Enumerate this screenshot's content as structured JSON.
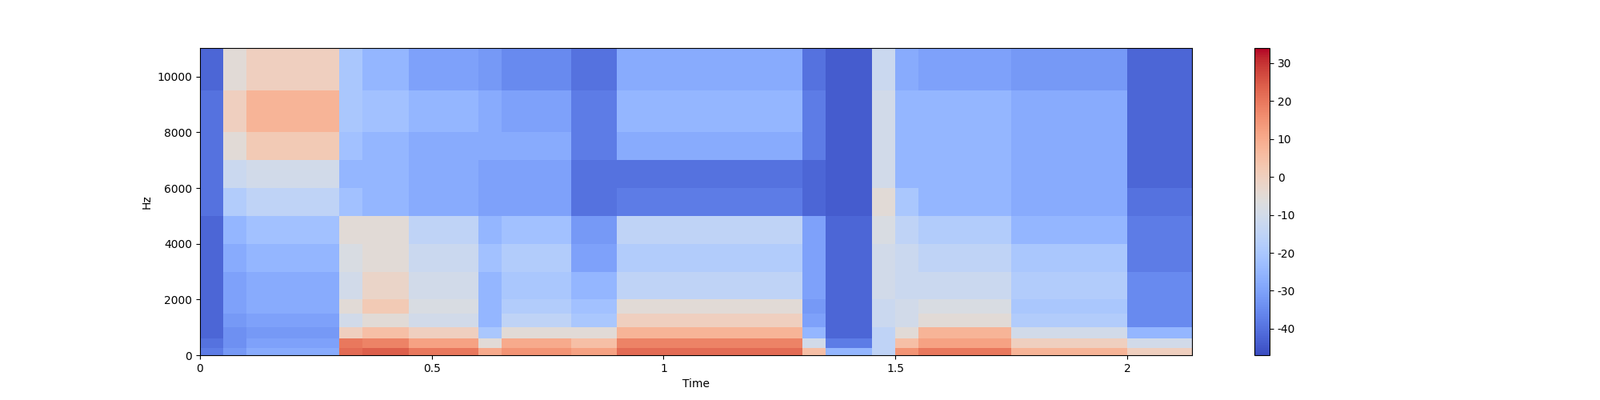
{
  "chart_data": {
    "type": "heatmap",
    "x_label": "Time",
    "y_label": "Hz",
    "xlim": [
      0,
      2.14
    ],
    "ylim": [
      0,
      11025
    ],
    "xticks": [
      0,
      0.5,
      1,
      1.5,
      2
    ],
    "yticks": [
      0,
      2000,
      4000,
      6000,
      8000,
      10000
    ],
    "x_edges": [
      0,
      0.05,
      0.1,
      0.15,
      0.2,
      0.25,
      0.3,
      0.35,
      0.4,
      0.45,
      0.5,
      0.55,
      0.6,
      0.65,
      0.7,
      0.75,
      0.8,
      0.85,
      0.9,
      0.95,
      1,
      1.05,
      1.1,
      1.15,
      1.2,
      1.25,
      1.3,
      1.35,
      1.4,
      1.45,
      1.5,
      1.55,
      1.6,
      1.65,
      1.7,
      1.75,
      1.8,
      1.85,
      1.9,
      1.95,
      2,
      2.05,
      2.1,
      2.14
    ],
    "y_edges": [
      0,
      250,
      600,
      1000,
      1500,
      2000,
      3000,
      4000,
      5000,
      6000,
      7000,
      8000,
      9500,
      11025
    ],
    "cells": [
      [
        -38,
        -32,
        -28,
        -28,
        -28,
        -28,
        22,
        24,
        24,
        20,
        20,
        20,
        10,
        15,
        15,
        15,
        12,
        12,
        22,
        22,
        22,
        22,
        22,
        22,
        22,
        22,
        5,
        -25,
        -25,
        -15,
        15,
        20,
        20,
        20,
        20,
        8,
        8,
        8,
        8,
        8,
        0,
        0,
        0
      ],
      [
        -40,
        -34,
        -30,
        -30,
        -30,
        -30,
        20,
        18,
        18,
        12,
        12,
        12,
        -5,
        10,
        10,
        10,
        5,
        5,
        18,
        18,
        18,
        18,
        18,
        18,
        18,
        18,
        -10,
        -38,
        -38,
        -15,
        5,
        12,
        12,
        12,
        12,
        0,
        0,
        0,
        0,
        0,
        -10,
        -10,
        -10
      ],
      [
        -42,
        -34,
        -32,
        -32,
        -32,
        -32,
        0,
        5,
        5,
        0,
        0,
        0,
        -20,
        -5,
        -5,
        -5,
        -5,
        -5,
        8,
        8,
        8,
        8,
        8,
        8,
        8,
        8,
        -25,
        -42,
        -42,
        -15,
        -5,
        8,
        8,
        8,
        8,
        -10,
        -10,
        -10,
        -10,
        -10,
        -25,
        -25,
        -25
      ],
      [
        -42,
        -32,
        -30,
        -30,
        -30,
        -30,
        -10,
        -5,
        -5,
        -10,
        -10,
        -10,
        -25,
        -15,
        -15,
        -15,
        -20,
        -20,
        0,
        0,
        0,
        0,
        0,
        0,
        0,
        0,
        -30,
        -42,
        -42,
        -12,
        -10,
        -5,
        -5,
        -5,
        -5,
        -18,
        -18,
        -18,
        -18,
        -18,
        -35,
        -35,
        -35
      ],
      [
        -42,
        -30,
        -28,
        -28,
        -28,
        -28,
        -5,
        2,
        2,
        -8,
        -8,
        -8,
        -25,
        -18,
        -18,
        -18,
        -22,
        -22,
        -5,
        -5,
        -5,
        -5,
        -5,
        -5,
        -5,
        -5,
        -32,
        -42,
        -42,
        -12,
        -10,
        -8,
        -8,
        -8,
        -8,
        -20,
        -20,
        -20,
        -20,
        -20,
        -35,
        -35,
        -35
      ],
      [
        -42,
        -30,
        -28,
        -28,
        -28,
        -28,
        -10,
        -2,
        -2,
        -10,
        -10,
        -10,
        -25,
        -20,
        -20,
        -20,
        -25,
        -25,
        -15,
        -15,
        -15,
        -15,
        -15,
        -15,
        -15,
        -15,
        -30,
        -42,
        -42,
        -10,
        -12,
        -12,
        -12,
        -12,
        -12,
        -18,
        -18,
        -18,
        -18,
        -18,
        -35,
        -35,
        -35
      ],
      [
        -42,
        -28,
        -25,
        -25,
        -25,
        -25,
        -8,
        -5,
        -5,
        -12,
        -12,
        -12,
        -22,
        -18,
        -18,
        -18,
        -30,
        -30,
        -18,
        -18,
        -18,
        -18,
        -18,
        -18,
        -18,
        -18,
        -30,
        -42,
        -42,
        -10,
        -12,
        -15,
        -15,
        -15,
        -15,
        -20,
        -20,
        -20,
        -20,
        -20,
        -38,
        -38,
        -38
      ],
      [
        -42,
        -25,
        -22,
        -22,
        -22,
        -22,
        -5,
        -5,
        -5,
        -15,
        -15,
        -15,
        -25,
        -22,
        -22,
        -22,
        -32,
        -32,
        -15,
        -15,
        -15,
        -15,
        -15,
        -15,
        -15,
        -15,
        -30,
        -42,
        -42,
        -8,
        -15,
        -18,
        -18,
        -18,
        -18,
        -25,
        -25,
        -25,
        -25,
        -25,
        -38,
        -38,
        -38
      ],
      [
        -40,
        -18,
        -15,
        -15,
        -15,
        -15,
        -22,
        -25,
        -25,
        -28,
        -28,
        -28,
        -30,
        -30,
        -30,
        -30,
        -40,
        -40,
        -38,
        -38,
        -38,
        -38,
        -38,
        -38,
        -38,
        -38,
        -42,
        -44,
        -44,
        -5,
        -20,
        -25,
        -25,
        -25,
        -25,
        -28,
        -28,
        -28,
        -28,
        -28,
        -40,
        -40,
        -40
      ],
      [
        -40,
        -12,
        -10,
        -10,
        -10,
        -10,
        -25,
        -25,
        -25,
        -28,
        -28,
        -28,
        -30,
        -30,
        -30,
        -30,
        -40,
        -40,
        -40,
        -40,
        -40,
        -40,
        -40,
        -40,
        -40,
        -40,
        -42,
        -44,
        -44,
        -10,
        -25,
        -25,
        -25,
        -25,
        -25,
        -28,
        -28,
        -28,
        -28,
        -28,
        -42,
        -42,
        -42
      ],
      [
        -40,
        -5,
        2,
        2,
        2,
        2,
        -22,
        -25,
        -25,
        -28,
        -28,
        -28,
        -28,
        -28,
        -28,
        -28,
        -38,
        -38,
        -28,
        -28,
        -28,
        -28,
        -28,
        -28,
        -28,
        -28,
        -38,
        -44,
        -44,
        -10,
        -25,
        -25,
        -25,
        -25,
        -25,
        -28,
        -28,
        -28,
        -28,
        -28,
        -42,
        -42,
        -42
      ],
      [
        -40,
        0,
        8,
        8,
        8,
        8,
        -20,
        -22,
        -22,
        -25,
        -25,
        -25,
        -28,
        -30,
        -30,
        -30,
        -38,
        -38,
        -25,
        -25,
        -25,
        -25,
        -25,
        -25,
        -25,
        -25,
        -38,
        -44,
        -44,
        -10,
        -25,
        -25,
        -25,
        -25,
        -25,
        -28,
        -28,
        -28,
        -28,
        -28,
        -42,
        -42,
        -42
      ],
      [
        -42,
        -5,
        0,
        0,
        0,
        0,
        -20,
        -25,
        -25,
        -30,
        -30,
        -30,
        -32,
        -35,
        -35,
        -35,
        -40,
        -40,
        -28,
        -28,
        -28,
        -28,
        -28,
        -28,
        -28,
        -28,
        -40,
        -44,
        -44,
        -12,
        -28,
        -30,
        -30,
        -30,
        -30,
        -32,
        -32,
        -32,
        -32,
        -32,
        -42,
        -42,
        -42
      ]
    ],
    "color_range": [
      -47,
      34
    ],
    "colorbar_ticks": [
      -40,
      -30,
      -20,
      -10,
      0,
      10,
      20,
      30
    ]
  }
}
